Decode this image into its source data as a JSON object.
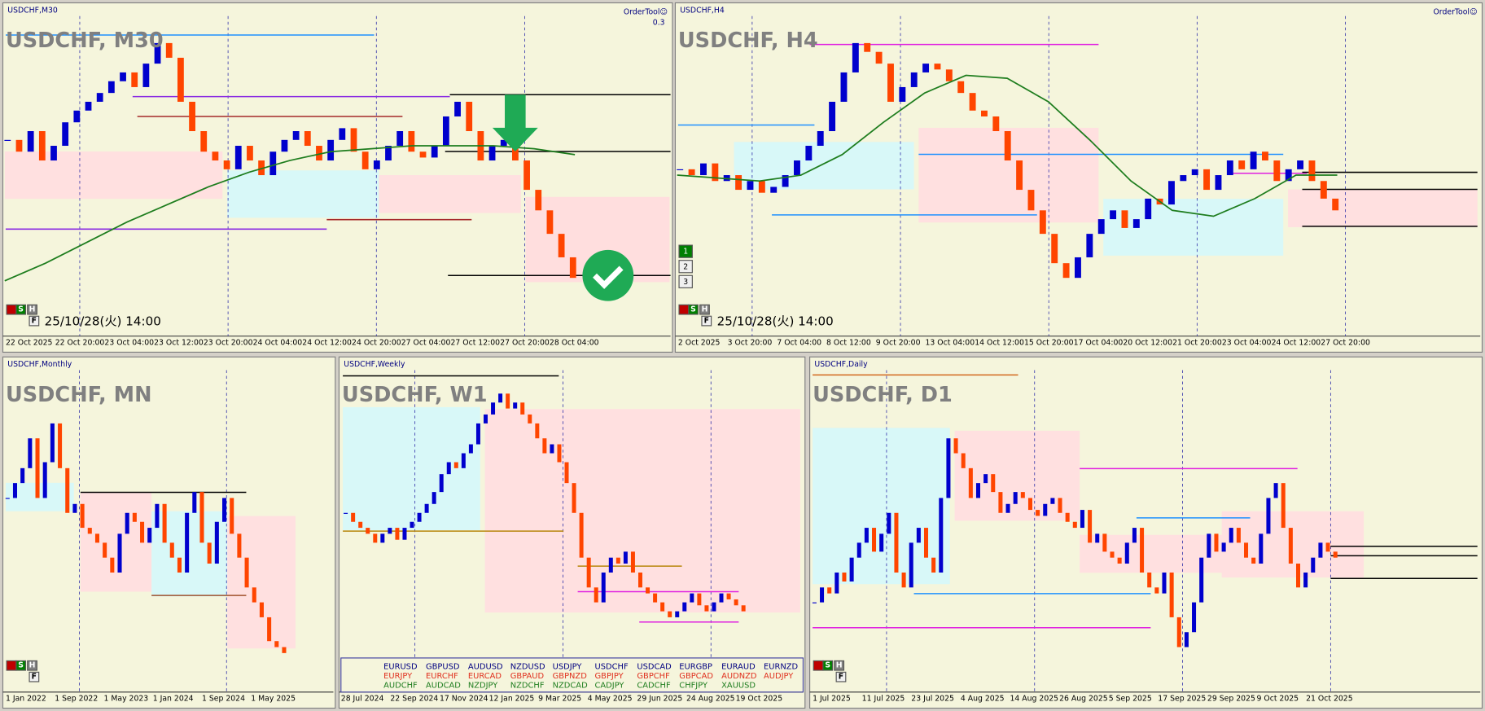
{
  "panels": [
    {
      "header": "USDCHF,M30",
      "title": "USDCHF, M30",
      "order_tool": "OrderTool☺",
      "order_value": "0.3",
      "timestamp": "25/10/28(火) 14:00",
      "buttons": [
        "S",
        "H",
        "F"
      ],
      "xticks": [
        "22 Oct 2025",
        "22 Oct 20:00",
        "23 Oct 04:00",
        "23 Oct 12:00",
        "23 Oct 20:00",
        "24 Oct 04:00",
        "24 Oct 12:00",
        "24 Oct 20:00",
        "27 Oct 04:00",
        "27 Oct 12:00",
        "27 Oct 20:00",
        "28 Oct 04:00"
      ],
      "ylim": [
        0,
        100
      ],
      "closes": [
        62,
        58,
        65,
        55,
        60,
        68,
        72,
        75,
        78,
        82,
        85,
        80,
        88,
        95,
        90,
        75,
        65,
        58,
        55,
        52,
        60,
        55,
        50,
        58,
        62,
        65,
        60,
        55,
        62,
        66,
        58,
        52,
        55,
        60,
        65,
        58,
        56,
        60,
        70,
        75,
        65,
        55,
        60,
        62,
        55,
        45,
        38,
        30,
        22,
        15
      ],
      "ma": [
        14,
        20,
        27,
        34,
        40,
        46,
        51,
        55,
        58,
        59,
        60,
        60,
        60,
        59,
        57
      ]
    },
    {
      "header": "USDCHF,H4",
      "title": "USDCHF, H4",
      "order_tool": "OrderTool☺",
      "timestamp": "25/10/28(火) 14:00",
      "buttons": [
        "S",
        "H",
        "F"
      ],
      "levels": [
        "1",
        "2",
        "3"
      ],
      "xticks": [
        "2 Oct 2025",
        "3 Oct 20:00",
        "7 Oct 04:00",
        "8 Oct 12:00",
        "9 Oct 20:00",
        "13 Oct 04:00",
        "14 Oct 12:00",
        "15 Oct 20:00",
        "17 Oct 04:00",
        "20 Oct 12:00",
        "21 Oct 20:00",
        "23 Oct 04:00",
        "24 Oct 12:00",
        "27 Oct 20:00"
      ],
      "ylim": [
        0,
        100
      ],
      "closes": [
        52,
        50,
        54,
        48,
        50,
        45,
        48,
        44,
        46,
        50,
        55,
        60,
        65,
        75,
        85,
        95,
        92,
        88,
        75,
        80,
        85,
        88,
        86,
        82,
        78,
        72,
        70,
        65,
        55,
        45,
        38,
        30,
        20,
        15,
        22,
        30,
        35,
        38,
        32,
        35,
        42,
        40,
        48,
        50,
        52,
        45,
        50,
        55,
        52,
        58,
        55,
        48,
        52,
        55,
        48,
        42,
        38
      ],
      "ma": [
        50,
        49,
        48,
        50,
        57,
        68,
        78,
        84,
        83,
        75,
        62,
        48,
        38,
        36,
        42,
        50,
        50
      ]
    },
    {
      "header": "USDCHF,Monthly",
      "title": "USDCHF, MN",
      "buttons": [
        "S",
        "H",
        "F"
      ],
      "xticks": [
        "1 Jan 2022",
        "1 Sep 2022",
        "1 May 2023",
        "1 Jan 2024",
        "1 Sep 2024",
        "1 May 2025"
      ],
      "ylim": [
        0,
        100
      ],
      "closes": [
        60,
        65,
        70,
        80,
        60,
        72,
        85,
        70,
        55,
        58,
        50,
        48,
        45,
        40,
        35,
        48,
        55,
        52,
        45,
        50,
        58,
        45,
        40,
        35,
        55,
        62,
        45,
        38,
        52,
        60,
        48,
        40,
        30,
        25,
        20,
        12,
        10,
        8
      ]
    },
    {
      "header": "USDCHF,Weekly",
      "title": "USDCHF, W1",
      "buttons": [
        "S",
        "H",
        "F"
      ],
      "xticks": [
        "28 Jul 2024",
        "22 Sep 2024",
        "17 Nov 2024",
        "12 Jan 2025",
        "9 Mar 2025",
        "4 May 2025",
        "29 Jun 2025",
        "24 Aug 2025",
        "19 Oct 2025"
      ],
      "ylim": [
        0,
        100
      ],
      "closes": [
        55,
        52,
        50,
        48,
        45,
        48,
        50,
        46,
        50,
        52,
        55,
        58,
        62,
        68,
        72,
        70,
        75,
        78,
        85,
        88,
        92,
        95,
        90,
        92,
        88,
        85,
        80,
        75,
        78,
        72,
        65,
        55,
        40,
        30,
        25,
        35,
        40,
        38,
        42,
        35,
        30,
        28,
        25,
        22,
        20,
        22,
        25,
        28,
        24,
        22,
        25,
        28,
        26,
        24,
        22
      ]
    },
    {
      "header": "USDCHF,Daily",
      "title": "USDCHF, D1",
      "buttons": [
        "S",
        "H",
        "F"
      ],
      "xticks": [
        "1 Jul 2025",
        "11 Jul 2025",
        "23 Jul 2025",
        "4 Aug 2025",
        "14 Aug 2025",
        "26 Aug 2025",
        "5 Sep 2025",
        "17 Sep 2025",
        "29 Sep 2025",
        "9 Oct 2025",
        "21 Oct 2025"
      ],
      "ylim": [
        0,
        100
      ],
      "closes": [
        25,
        30,
        28,
        35,
        32,
        40,
        45,
        50,
        42,
        48,
        55,
        35,
        30,
        45,
        50,
        40,
        35,
        60,
        80,
        75,
        70,
        60,
        65,
        68,
        62,
        55,
        58,
        62,
        60,
        56,
        54,
        58,
        60,
        55,
        52,
        50,
        56,
        45,
        48,
        42,
        40,
        38,
        45,
        50,
        35,
        30,
        28,
        35,
        20,
        10,
        15,
        25,
        40,
        48,
        42,
        45,
        50,
        45,
        40,
        38,
        48,
        60,
        65,
        50,
        38,
        30,
        35,
        40,
        45,
        42,
        40
      ]
    }
  ],
  "colors": {
    "up": "#0000cd",
    "down": "#ff4500",
    "ma": "#1e7d1e"
  },
  "symbol_grid": [
    [
      "EURUSD",
      "GBPUSD",
      "AUDUSD",
      "NZDUSD",
      "USDJPY",
      "USDCHF",
      "USDCAD",
      "EURGBP",
      "EURAUD",
      "EURNZD"
    ],
    [
      "EURJPY",
      "EURCHF",
      "EURCAD",
      "GBPAUD",
      "GBPNZD",
      "GBPJPY",
      "GBPCHF",
      "GBPCAD",
      "AUDNZD",
      "AUDJPY"
    ],
    [
      "AUDCHF",
      "AUDCAD",
      "NZDJPY",
      "NZDCHF",
      "NZDCAD",
      "CADJPY",
      "CADCHF",
      "CHFJPY",
      "XAUUSD"
    ]
  ]
}
